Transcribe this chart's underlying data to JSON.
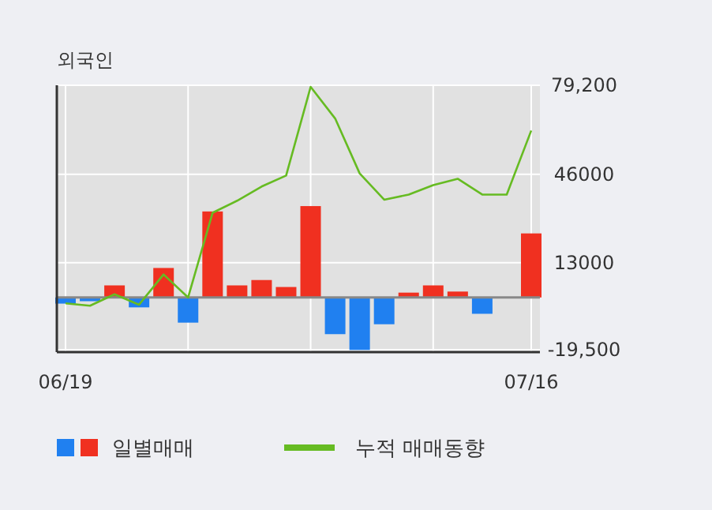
{
  "chart_data": {
    "type": "bar",
    "title": "외국인",
    "categories": [
      "06/19",
      null,
      null,
      null,
      null,
      null,
      null,
      null,
      null,
      null,
      null,
      null,
      null,
      null,
      null,
      null,
      null,
      null,
      null,
      "07/16"
    ],
    "series": [
      {
        "name": "일별매매",
        "colors": [
          "#2080f0",
          "#2080f0",
          "#f03020",
          "#2080f0",
          "#f03020",
          "#2080f0",
          "#f03020",
          "#f03020",
          "#f03020",
          "#f03020",
          "#f03020",
          "#2080f0",
          "#2080f0",
          "#2080f0",
          "#f03020",
          "#f03020",
          "#f03020",
          "#2080f0",
          "#f03020",
          "#f03020"
        ],
        "values": [
          -2300,
          -1400,
          4500,
          -3700,
          11000,
          -9400,
          32100,
          4500,
          6500,
          3900,
          34100,
          -13700,
          -19600,
          -10000,
          1800,
          4500,
          2200,
          -6100,
          0,
          23900
        ]
      },
      {
        "name": "누적 매매동향",
        "type": "line",
        "color": "#66bb22",
        "values": [
          -2200,
          -3100,
          1200,
          -2700,
          8600,
          0,
          31600,
          36100,
          41400,
          45500,
          78600,
          66800,
          46300,
          36500,
          38400,
          41900,
          44300,
          38400,
          38400,
          62300
        ]
      }
    ],
    "ylim": [
      -20400,
      79200
    ],
    "yticks": [
      {
        "value": 79200,
        "label": "79,200"
      },
      46000,
      13000,
      {
        "value": -19500,
        "label": "-19,500"
      }
    ],
    "grid": true,
    "legend": "bottom"
  }
}
